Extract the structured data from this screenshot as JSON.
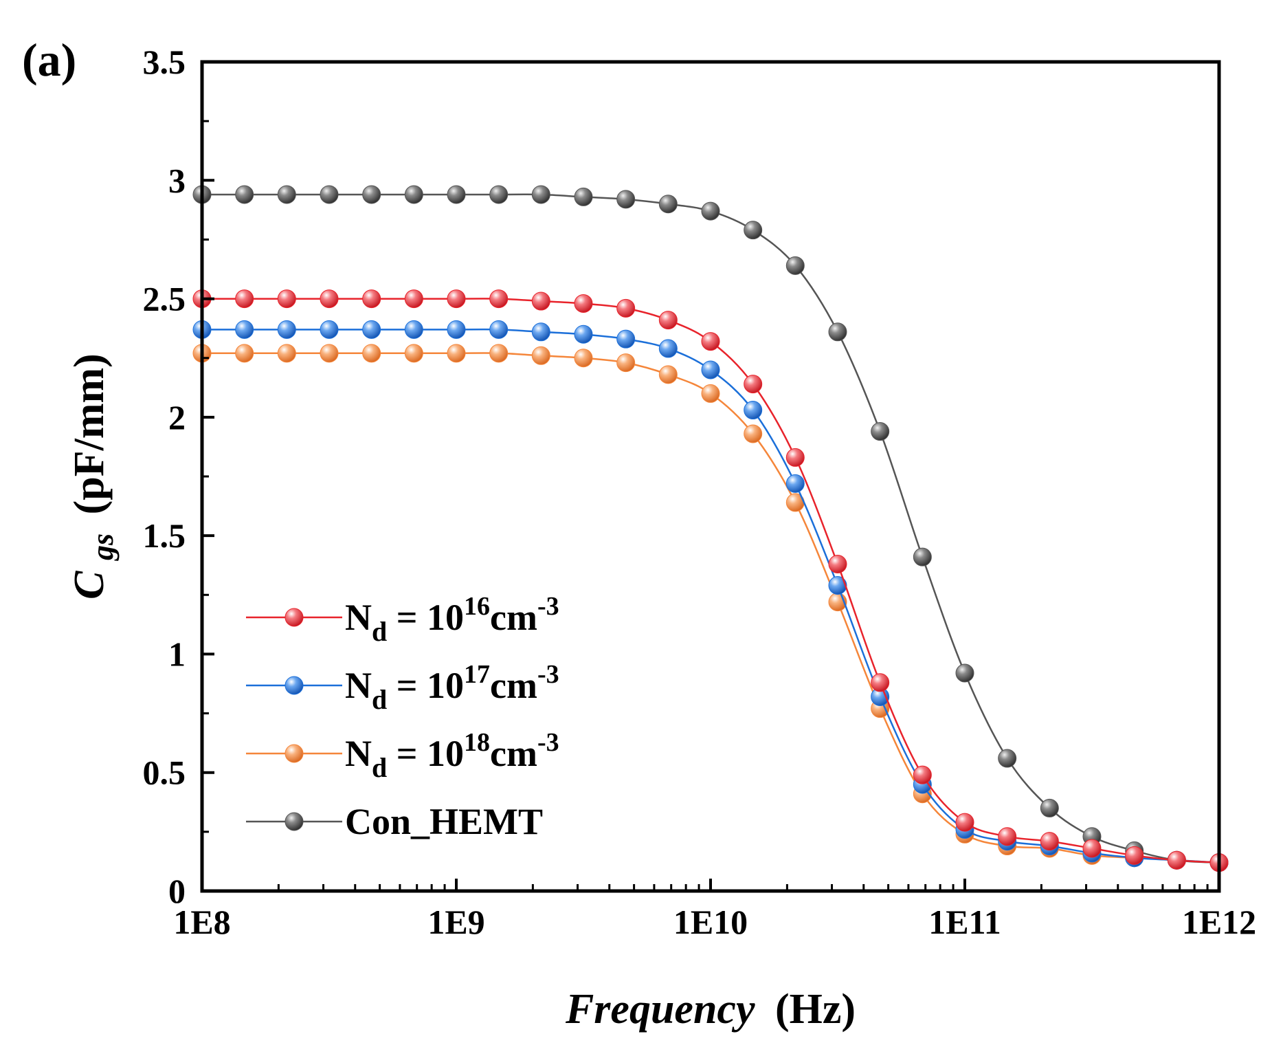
{
  "panel_label": "(a)",
  "chart_data": {
    "type": "line",
    "xscale": "log",
    "xlim": [
      100000000.0,
      1000000000000.0
    ],
    "ylim": [
      0,
      3.5
    ],
    "x_ticks": [
      100000000.0,
      1000000000.0,
      10000000000.0,
      100000000000.0,
      1000000000000.0
    ],
    "x_tick_labels": [
      "1E8",
      "1E9",
      "1E10",
      "1E11",
      "1E12"
    ],
    "y_ticks": [
      0,
      0.5,
      1,
      1.5,
      2,
      2.5,
      3,
      3.5
    ],
    "y_tick_labels": [
      "0",
      "0.5",
      "1",
      "1.5",
      "2",
      "2.5",
      "3",
      "3.5"
    ],
    "xlabel_italic": "Frequency",
    "xlabel_unit": "(Hz)",
    "ylabel_main": "C",
    "ylabel_sub": "gs",
    "ylabel_unit": "(pF/mm)",
    "legend_position": "bottom-left",
    "x": [
      100000000.0,
      146800000.0,
      215400000.0,
      316200000.0,
      464200000.0,
      681300000.0,
      1000000000.0,
      1468000000.0,
      2154000000.0,
      3162000000.0,
      4642000000.0,
      6813000000.0,
      10000000000.0,
      14680000000.0,
      21540000000.0,
      31620000000.0,
      46420000000.0,
      68130000000.0,
      100000000000.0,
      146800000000.0,
      215400000000.0,
      316200000000.0,
      464200000000.0,
      681300000000.0,
      1000000000000.0
    ],
    "series": [
      {
        "name_main": "N",
        "name_sub": "d",
        "name_mid": " = 10",
        "name_sup": "16",
        "name_unit": "cm",
        "name_unit_sup": "-3",
        "color": "#e8232b",
        "values": [
          2.5,
          2.5,
          2.5,
          2.5,
          2.5,
          2.5,
          2.5,
          2.5,
          2.49,
          2.48,
          2.46,
          2.41,
          2.32,
          2.14,
          1.83,
          1.38,
          0.88,
          0.49,
          0.29,
          0.23,
          0.21,
          0.18,
          0.15,
          0.13,
          0.12
        ]
      },
      {
        "name_main": "N",
        "name_sub": "d",
        "name_mid": " = 10",
        "name_sup": "17",
        "name_unit": "cm",
        "name_unit_sup": "-3",
        "color": "#1b6fd9",
        "values": [
          2.37,
          2.37,
          2.37,
          2.37,
          2.37,
          2.37,
          2.37,
          2.37,
          2.36,
          2.35,
          2.33,
          2.29,
          2.2,
          2.03,
          1.72,
          1.29,
          0.82,
          0.45,
          0.26,
          0.21,
          0.19,
          0.16,
          0.14,
          0.13,
          0.12
        ]
      },
      {
        "name_main": "N",
        "name_sub": "d",
        "name_mid": " = 10",
        "name_sup": "18",
        "name_unit": "cm",
        "name_unit_sup": "-3",
        "color": "#f5863a",
        "values": [
          2.27,
          2.27,
          2.27,
          2.27,
          2.27,
          2.27,
          2.27,
          2.27,
          2.26,
          2.25,
          2.23,
          2.18,
          2.1,
          1.93,
          1.64,
          1.22,
          0.77,
          0.41,
          0.24,
          0.19,
          0.18,
          0.15,
          0.14,
          0.13,
          0.12
        ]
      },
      {
        "name_plain": "Con_HEMT",
        "color": "#555555",
        "values": [
          2.94,
          2.94,
          2.94,
          2.94,
          2.94,
          2.94,
          2.94,
          2.94,
          2.94,
          2.93,
          2.92,
          2.9,
          2.87,
          2.79,
          2.64,
          2.36,
          1.94,
          1.41,
          0.92,
          0.56,
          0.35,
          0.23,
          0.17,
          0.13,
          0.12
        ]
      }
    ]
  }
}
